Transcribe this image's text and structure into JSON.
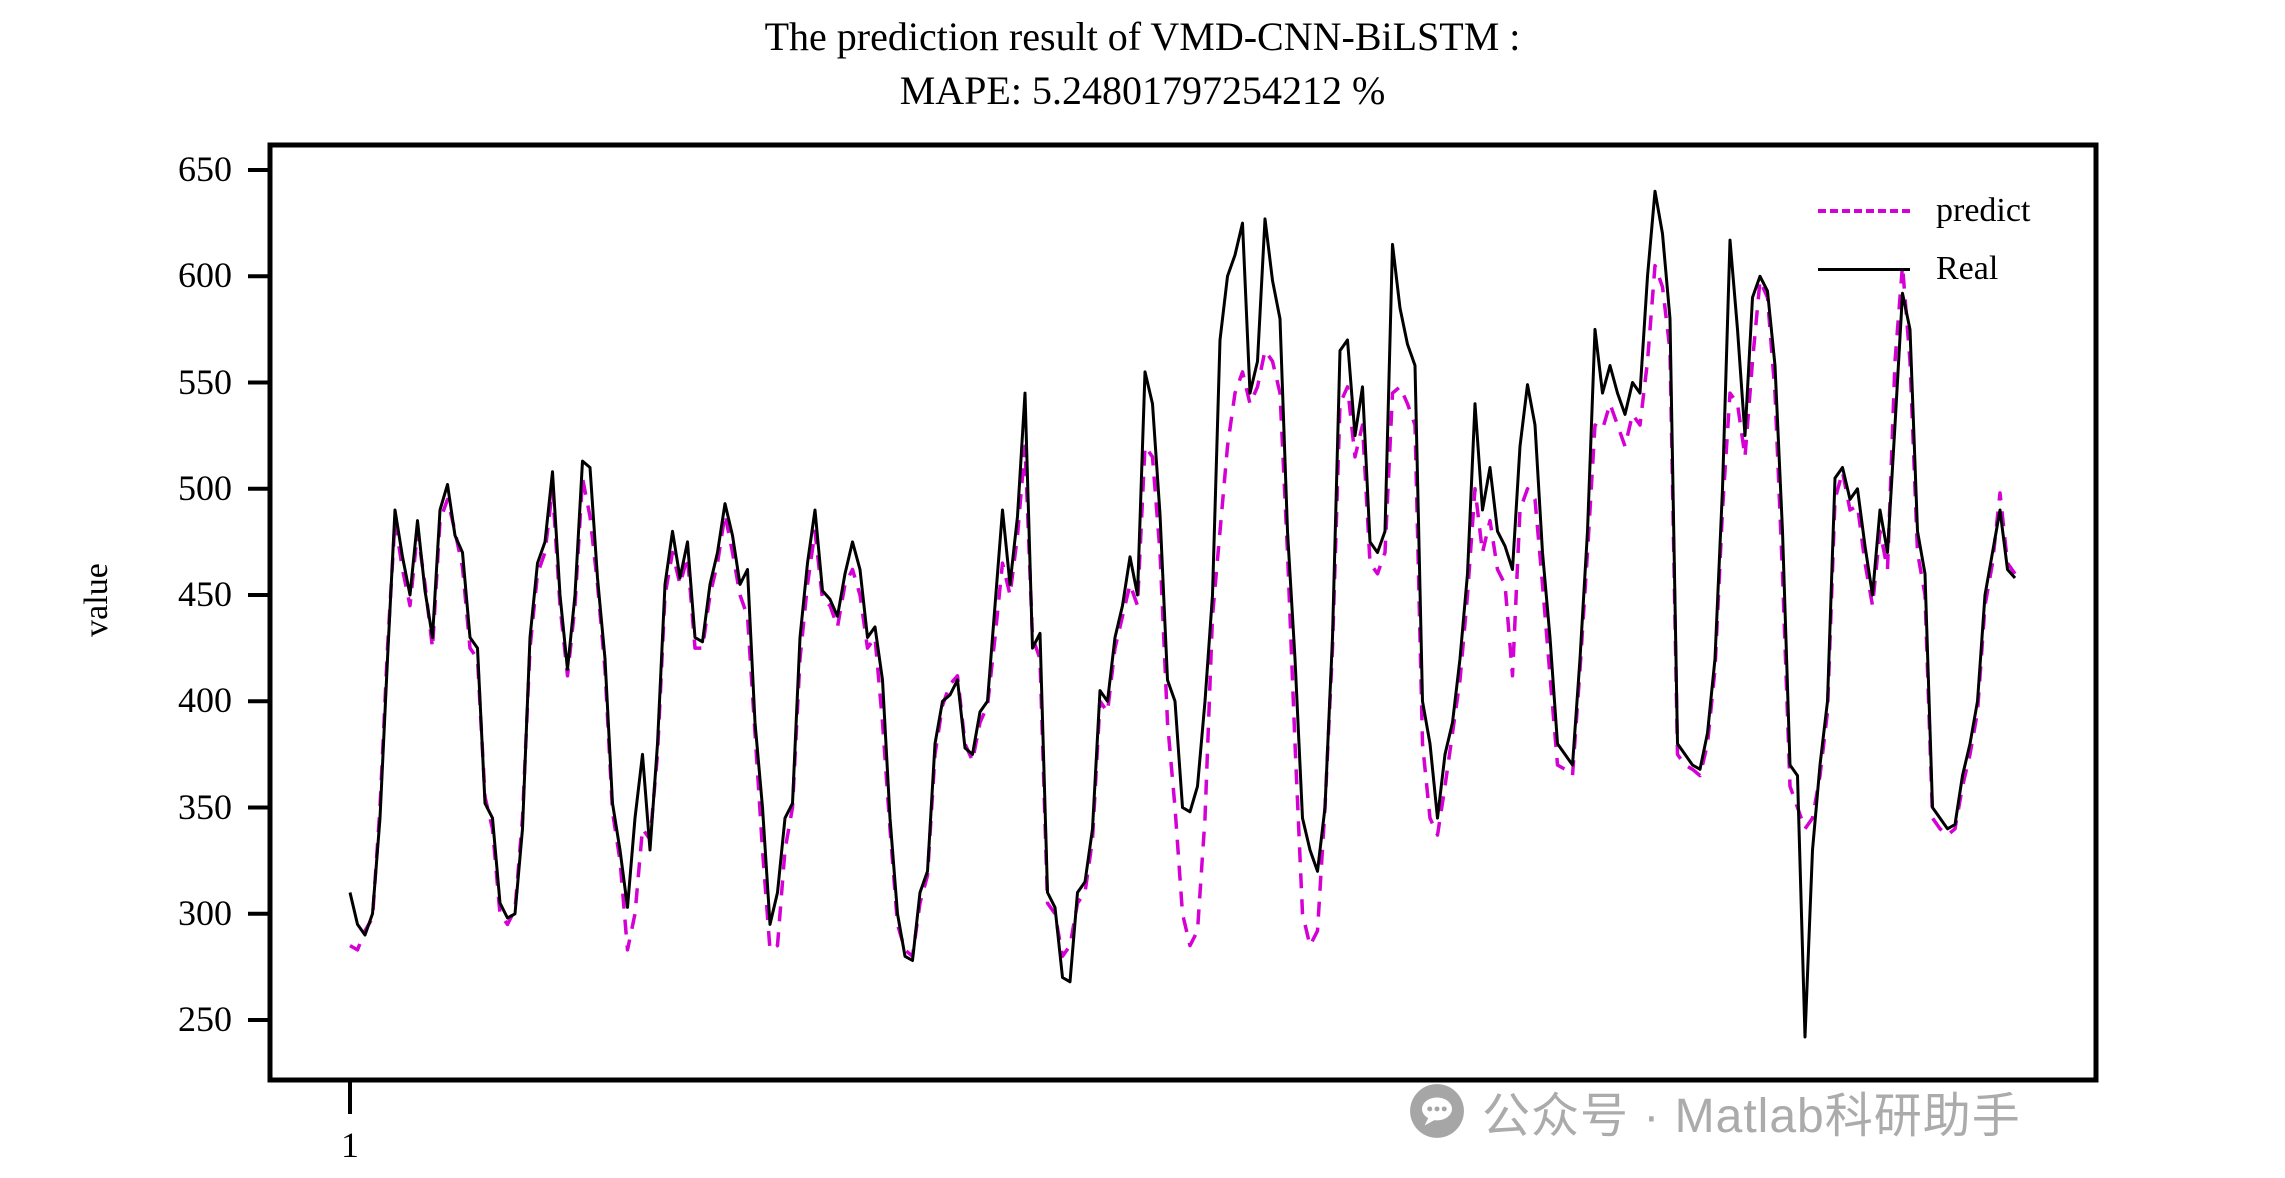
{
  "title": {
    "line1": "The prediction result of VMD-CNN-BiLSTM :",
    "line2": "MAPE: 5.24801797254212 %"
  },
  "axes": {
    "ylabel": "value",
    "y_ticks": [
      650,
      600,
      550,
      500,
      450,
      400,
      350,
      300,
      250
    ],
    "x_first_tick_label": "1"
  },
  "legend": {
    "items": [
      {
        "label": "predict",
        "color": "#D400D4",
        "line_style": "dashed"
      },
      {
        "label": "Real",
        "color": "#000000",
        "line_style": "solid"
      }
    ]
  },
  "watermark": {
    "icon": "wechat-chat-icon",
    "text": "公众号 · Matlab科研助手"
  },
  "chart_data": {
    "type": "line",
    "title": "The prediction result of VMD-CNN-BiLSTM : MAPE: 5.24801797254212 %",
    "xlabel": "",
    "ylabel": "value",
    "ylim": [
      222,
      662
    ],
    "x_start": 1,
    "x_step": 1,
    "n_points": 223,
    "x_tick_labels_visible": [
      "1"
    ],
    "legend_position": "upper right",
    "grid": false,
    "series": [
      {
        "name": "predict",
        "color": "#D400D4",
        "style": "dashed",
        "values": [
          285,
          283,
          292,
          298,
          350,
          425,
          485,
          462,
          445,
          480,
          455,
          425,
          485,
          495,
          480,
          463,
          425,
          420,
          355,
          340,
          300,
          295,
          302,
          345,
          425,
          460,
          470,
          500,
          445,
          412,
          445,
          505,
          487,
          455,
          415,
          348,
          325,
          283,
          300,
          340,
          335,
          375,
          450,
          470,
          455,
          468,
          425,
          425,
          450,
          465,
          488,
          470,
          450,
          440,
          385,
          330,
          283,
          285,
          330,
          350,
          420,
          455,
          480,
          448,
          445,
          435,
          455,
          462,
          450,
          425,
          430,
          390,
          340,
          295,
          283,
          280,
          305,
          318,
          375,
          398,
          408,
          412,
          380,
          372,
          390,
          398,
          430,
          465,
          450,
          478,
          520,
          430,
          420,
          305,
          300,
          280,
          285,
          305,
          310,
          335,
          400,
          395,
          425,
          440,
          455,
          445,
          520,
          515,
          470,
          390,
          350,
          300,
          285,
          292,
          345,
          440,
          480,
          520,
          545,
          555,
          540,
          548,
          565,
          560,
          545,
          470,
          380,
          300,
          285,
          292,
          350,
          425,
          540,
          548,
          515,
          530,
          465,
          460,
          470,
          545,
          548,
          540,
          530,
          380,
          345,
          337,
          360,
          385,
          410,
          450,
          500,
          470,
          485,
          462,
          455,
          412,
          490,
          500,
          495,
          455,
          412,
          370,
          368,
          365,
          415,
          470,
          530,
          528,
          540,
          530,
          520,
          535,
          530,
          560,
          605,
          595,
          565,
          375,
          370,
          368,
          365,
          380,
          415,
          490,
          545,
          540,
          515,
          560,
          598,
          590,
          545,
          460,
          360,
          350,
          340,
          345,
          365,
          395,
          495,
          508,
          490,
          492,
          465,
          445,
          480,
          462,
          560,
          605,
          560,
          470,
          450,
          345,
          340,
          337,
          340,
          360,
          375,
          395,
          445,
          465,
          498,
          465,
          460
        ]
      },
      {
        "name": "Real",
        "color": "#000000",
        "style": "solid",
        "values": [
          310,
          295,
          290,
          300,
          345,
          420,
          490,
          468,
          450,
          485,
          452,
          430,
          490,
          502,
          478,
          470,
          430,
          425,
          352,
          345,
          305,
          298,
          300,
          340,
          430,
          465,
          475,
          508,
          450,
          415,
          450,
          513,
          510,
          458,
          420,
          352,
          330,
          303,
          345,
          375,
          330,
          380,
          455,
          480,
          458,
          475,
          430,
          428,
          455,
          470,
          493,
          478,
          455,
          462,
          390,
          350,
          295,
          310,
          345,
          352,
          430,
          465,
          490,
          452,
          448,
          440,
          460,
          475,
          462,
          430,
          435,
          410,
          345,
          300,
          280,
          278,
          310,
          320,
          380,
          400,
          403,
          410,
          378,
          375,
          395,
          400,
          445,
          490,
          455,
          487,
          545,
          425,
          432,
          310,
          303,
          270,
          268,
          310,
          315,
          340,
          405,
          400,
          430,
          445,
          468,
          450,
          555,
          540,
          488,
          410,
          400,
          350,
          348,
          360,
          400,
          450,
          570,
          600,
          610,
          625,
          545,
          560,
          627,
          598,
          580,
          480,
          420,
          345,
          330,
          320,
          350,
          430,
          565,
          570,
          525,
          548,
          475,
          470,
          480,
          615,
          585,
          568,
          558,
          400,
          380,
          345,
          375,
          390,
          420,
          460,
          540,
          490,
          510,
          480,
          473,
          462,
          520,
          549,
          530,
          470,
          430,
          380,
          375,
          370,
          420,
          480,
          575,
          545,
          558,
          545,
          535,
          550,
          545,
          600,
          640,
          620,
          580,
          380,
          375,
          370,
          368,
          385,
          420,
          500,
          617,
          575,
          525,
          590,
          600,
          593,
          558,
          480,
          370,
          365,
          242,
          330,
          370,
          400,
          505,
          510,
          495,
          500,
          473,
          450,
          490,
          470,
          530,
          592,
          575,
          480,
          460,
          350,
          345,
          340,
          342,
          365,
          380,
          400,
          450,
          470,
          490,
          462,
          458
        ]
      }
    ]
  }
}
